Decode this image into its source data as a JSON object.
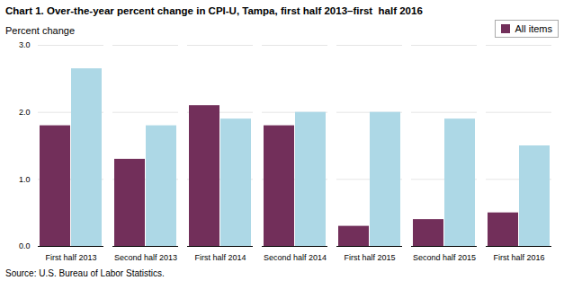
{
  "chart_data": {
    "type": "bar",
    "title": "Chart 1. Over-the-year percent change in CPI-U, Tampa, first half 2013–first  half 2016",
    "ylabel": "Percent change",
    "source": "Source: U.S. Bureau of Labor Statistics.",
    "categories": [
      "First half 2013",
      "Second half 2013",
      "First half 2014",
      "Second half 2014",
      "First half 2015",
      "Second half 2015",
      "First half 2016"
    ],
    "series": [
      {
        "name": "All items",
        "color": "#722F5A",
        "values": [
          1.8,
          1.3,
          2.1,
          1.8,
          0.3,
          0.4,
          0.5
        ]
      },
      {
        "color": "#ADD8E6",
        "values": [
          2.65,
          1.8,
          1.9,
          2.0,
          2.0,
          1.9,
          1.5
        ]
      }
    ],
    "ylim": [
      0.0,
      3.0
    ],
    "yticks": [
      {
        "value": 0,
        "label": "0.0"
      },
      {
        "value": 1,
        "label": "1.0"
      },
      {
        "value": 2,
        "label": "2.0"
      },
      {
        "value": 3,
        "label": "3.0"
      }
    ],
    "grid": true,
    "legend": "upper right"
  }
}
